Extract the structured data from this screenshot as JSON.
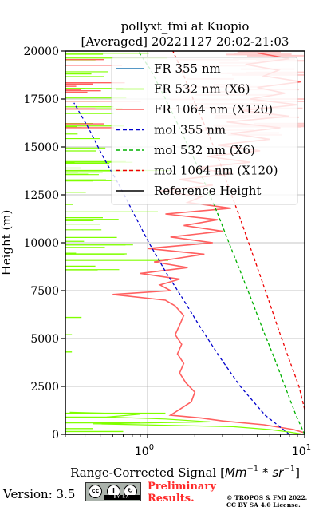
{
  "chart_data": {
    "type": "line",
    "title": "pollyxt_fmi at Kuopio",
    "subtitle": "[Averaged] 20221127 20:02-21:03",
    "xlabel": "Range-Corrected Signal [Mm^-1 * sr^-1]",
    "xlabel_main": "Range-Corrected Signal [",
    "xlabel_math_a": "Mm",
    "xlabel_math_sup1": "−1",
    "xlabel_math_b": " * sr",
    "xlabel_math_sup2": "−1",
    "xlabel_end": "]",
    "ylabel": "Height (m)",
    "xscale": "log",
    "xlim": [
      0.3,
      10
    ],
    "ylim": [
      0,
      20000
    ],
    "x_ticks": [
      {
        "value": 1,
        "label": "10",
        "exp": "0"
      },
      {
        "value": 10,
        "label": "10",
        "exp": "1"
      }
    ],
    "y_ticks": [
      0,
      2500,
      5000,
      7500,
      10000,
      12500,
      15000,
      17500,
      20000
    ],
    "y_tick_labels": [
      "0",
      "2500",
      "5000",
      "7500",
      "10000",
      "12500",
      "15000",
      "17500",
      "20000"
    ],
    "grid": true,
    "legend_position": "top-right",
    "legend": [
      {
        "label": "FR 355 nm",
        "color": "#1f77b4",
        "style": "solid"
      },
      {
        "label": "FR 532 nm (X6)",
        "color": "#80ff00",
        "style": "solid"
      },
      {
        "label": "FR 1064 nm (X120)",
        "color": "#ff6060",
        "style": "solid"
      },
      {
        "label": "mol 355 nm",
        "color": "#0000cc",
        "style": "dashed"
      },
      {
        "label": "mol 532 nm (X6)",
        "color": "#00b000",
        "style": "dashed"
      },
      {
        "label": "mol 1064 nm (X120)",
        "color": "#ee0000",
        "style": "dashed"
      },
      {
        "label": "Reference Height",
        "color": "#000000",
        "style": "solid"
      }
    ],
    "series": [
      {
        "name": "mol 355 nm",
        "color": "#0000cc",
        "style": "dashed",
        "points": [
          [
            8.0,
            0
          ],
          [
            5.6,
            1000
          ],
          [
            3.9,
            2500
          ],
          [
            2.9,
            4000
          ],
          [
            2.2,
            5500
          ],
          [
            1.7,
            7000
          ],
          [
            1.3,
            8500
          ],
          [
            1.02,
            10000
          ],
          [
            0.82,
            11500
          ],
          [
            0.66,
            13000
          ],
          [
            0.52,
            14500
          ],
          [
            0.42,
            16000
          ],
          [
            0.34,
            17300
          ]
        ]
      },
      {
        "name": "mol 532 nm (X6)",
        "color": "#00b000",
        "style": "dashed",
        "points": [
          [
            10.0,
            0
          ],
          [
            8.8,
            1000
          ],
          [
            7.5,
            2500
          ],
          [
            6.4,
            4000
          ],
          [
            5.4,
            5500
          ],
          [
            4.6,
            7000
          ],
          [
            3.9,
            8500
          ],
          [
            3.3,
            10000
          ],
          [
            2.8,
            11500
          ],
          [
            2.35,
            13000
          ],
          [
            1.95,
            14500
          ],
          [
            1.6,
            16000
          ],
          [
            1.3,
            17500
          ],
          [
            1.05,
            19000
          ],
          [
            0.87,
            20000
          ]
        ]
      },
      {
        "name": "mol 1064 nm (X120)",
        "color": "#ee0000",
        "style": "dashed",
        "points": [
          [
            10.0,
            1300
          ],
          [
            9.2,
            2500
          ],
          [
            7.9,
            4000
          ],
          [
            6.8,
            5500
          ],
          [
            5.9,
            7000
          ],
          [
            5.1,
            8500
          ],
          [
            4.4,
            10000
          ],
          [
            3.8,
            11500
          ],
          [
            3.25,
            13000
          ],
          [
            2.8,
            14500
          ],
          [
            2.35,
            16000
          ],
          [
            1.95,
            17500
          ],
          [
            1.65,
            19000
          ],
          [
            1.45,
            20000
          ]
        ]
      },
      {
        "name": "FR 1064 nm (X120)",
        "color": "#ff6060",
        "style": "solid",
        "points": [
          [
            9.8,
            100
          ],
          [
            8.5,
            250
          ],
          [
            5.5,
            500
          ],
          [
            3.0,
            700
          ],
          [
            2.2,
            850
          ],
          [
            1.4,
            1000
          ],
          [
            1.6,
            1300
          ],
          [
            1.9,
            1700
          ],
          [
            2.0,
            2200
          ],
          [
            1.75,
            2700
          ],
          [
            1.6,
            3200
          ],
          [
            1.7,
            3700
          ],
          [
            1.55,
            4200
          ],
          [
            1.65,
            4700
          ],
          [
            1.5,
            5200
          ],
          [
            1.6,
            5700
          ],
          [
            1.7,
            6200
          ],
          [
            1.5,
            6700
          ],
          [
            1.3,
            7000
          ],
          [
            0.6,
            7300
          ],
          [
            1.4,
            7500
          ],
          [
            1.2,
            7800
          ],
          [
            1.6,
            8100
          ],
          [
            0.9,
            8400
          ],
          [
            1.8,
            8700
          ],
          [
            1.1,
            9000
          ],
          [
            2.3,
            9400
          ],
          [
            1.0,
            9700
          ],
          [
            2.6,
            10000
          ],
          [
            1.4,
            10300
          ],
          [
            3.0,
            10600
          ],
          [
            1.7,
            10900
          ],
          [
            2.8,
            11200
          ],
          [
            1.3,
            11500
          ],
          [
            3.4,
            11800
          ],
          [
            1.8,
            12100
          ],
          [
            2.2,
            12400
          ],
          [
            1.2,
            12700
          ],
          [
            2.6,
            13000
          ],
          [
            1.6,
            13300
          ],
          [
            3.5,
            13600
          ],
          [
            2.0,
            13900
          ],
          [
            4.5,
            14200
          ],
          [
            2.4,
            14500
          ],
          [
            5.2,
            14800
          ],
          [
            2.8,
            15100
          ],
          [
            6.0,
            15400
          ],
          [
            3.4,
            15700
          ],
          [
            7.0,
            16000
          ],
          [
            3.2,
            16300
          ],
          [
            8.0,
            16600
          ],
          [
            4.0,
            16900
          ],
          [
            9.0,
            17200
          ],
          [
            4.5,
            17500
          ],
          [
            7.5,
            17800
          ],
          [
            5.0,
            18100
          ],
          [
            9.5,
            18400
          ],
          [
            5.5,
            18700
          ],
          [
            6.8,
            19000
          ],
          [
            4.2,
            19300
          ],
          [
            8.0,
            19600
          ],
          [
            5.0,
            19900
          ]
        ]
      }
    ]
  },
  "footer": {
    "version": "Version: 3.5",
    "cc_text": "BY  SA",
    "preliminary_line1": "Preliminary",
    "preliminary_line2": "Results.",
    "copyright_line1": "© TROPOS & FMI 2022.",
    "copyright_line2": "CC BY SA 4.0 License."
  }
}
